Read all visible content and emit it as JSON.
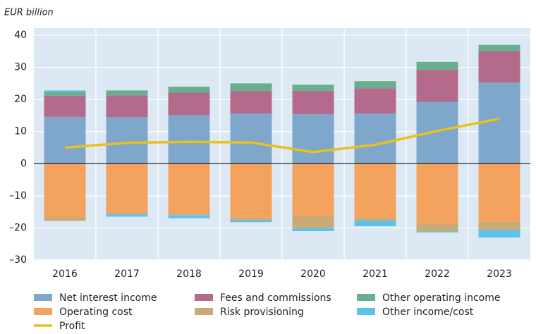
{
  "chart_data": {
    "type": "bar",
    "stacked": true,
    "y_label": "EUR billion",
    "categories": [
      "2016",
      "2017",
      "2018",
      "2019",
      "2020",
      "2021",
      "2022",
      "2023"
    ],
    "series": [
      {
        "name": "Net interest income",
        "color": "#7ea7cb",
        "values": [
          14.6,
          14.5,
          15.1,
          15.6,
          15.4,
          15.6,
          19.2,
          25.3
        ]
      },
      {
        "name": "Fees and commissions",
        "color": "#b36a8b",
        "values": [
          6.6,
          6.8,
          7.1,
          7.1,
          7.3,
          7.9,
          10.1,
          9.8
        ]
      },
      {
        "name": "Other operating income",
        "color": "#68b08d",
        "values": [
          1.2,
          1.5,
          1.8,
          2.3,
          1.9,
          2.2,
          2.4,
          1.9
        ]
      },
      {
        "name": "Operating cost",
        "color": "#f4a35f",
        "values": [
          -16.5,
          -15.2,
          -15.8,
          -16.8,
          -16.5,
          -16.8,
          -18.6,
          -18.1
        ]
      },
      {
        "name": "Risk provisioning",
        "color": "#c8aa76",
        "values": [
          -1.3,
          -0.6,
          -0.2,
          -0.8,
          -3.6,
          -1.0,
          -2.5,
          -2.6
        ]
      },
      {
        "name": "Other income/cost",
        "color": "#5bc3ea",
        "values": [
          0.4,
          -0.7,
          -1.0,
          -0.6,
          -0.9,
          -1.7,
          -0.3,
          -2.3
        ]
      },
      {
        "name": "Profit",
        "type": "line",
        "color": "#e6c21c",
        "values": [
          5.0,
          6.5,
          6.8,
          6.6,
          3.6,
          5.9,
          10.2,
          14.0
        ]
      }
    ],
    "ylim": [
      -30,
      40
    ],
    "yticks": [
      {
        "value": -30,
        "label": "–30"
      },
      {
        "value": -20,
        "label": "–20"
      },
      {
        "value": -10,
        "label": "–10"
      },
      0,
      10,
      20,
      30,
      40
    ],
    "grid": true
  }
}
